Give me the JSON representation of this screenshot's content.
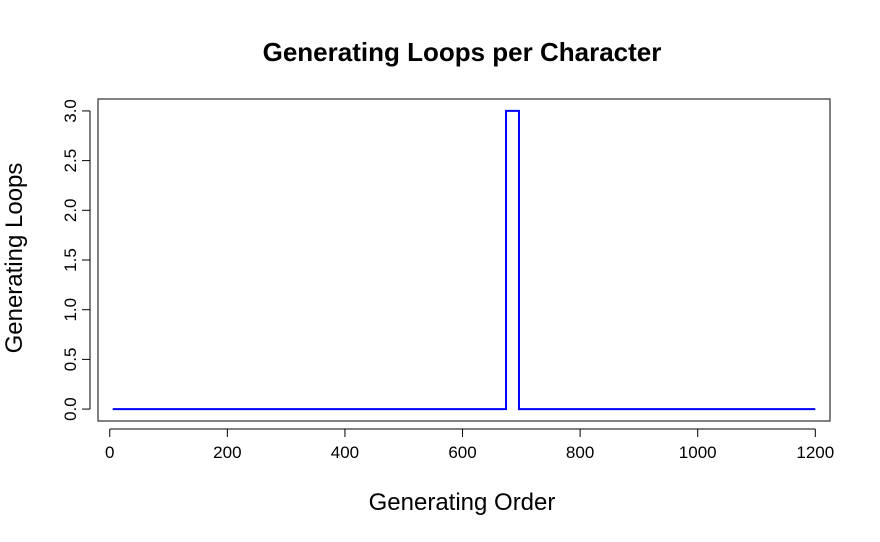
{
  "chart_data": {
    "type": "line",
    "title": "Generating Loops per Character",
    "xlabel": "Generating Order",
    "ylabel": "Generating Loops",
    "xlim": [
      -20,
      1225
    ],
    "ylim": [
      -0.12,
      3.12
    ],
    "xticks": [
      0,
      200,
      400,
      600,
      800,
      1000,
      1200
    ],
    "xtick_labels": [
      "0",
      "200",
      "400",
      "600",
      "800",
      "1000",
      "1200"
    ],
    "yticks": [
      0,
      0.5,
      1,
      1.5,
      2,
      2.5,
      3
    ],
    "ytick_labels": [
      "0.0",
      "0.5",
      "1.0",
      "1.5",
      "2.0",
      "2.5",
      "3.0"
    ],
    "series": [
      {
        "color": "#0000ff",
        "x": [
          5,
          674,
          674,
          696,
          696,
          1200
        ],
        "y": [
          0,
          0,
          3,
          3,
          0,
          0
        ]
      }
    ],
    "grid": false,
    "legend": "none"
  }
}
